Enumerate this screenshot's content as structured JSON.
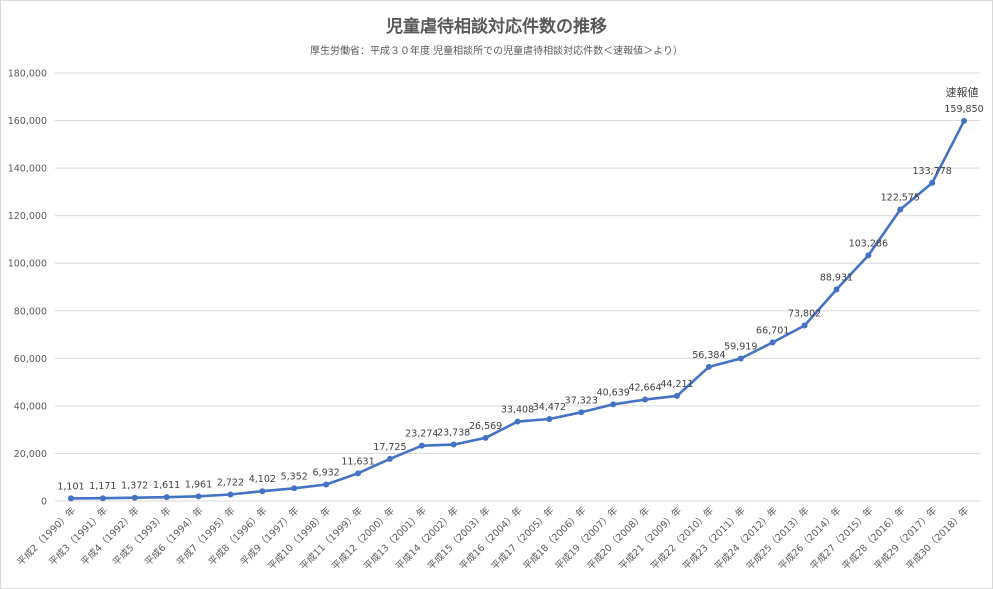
{
  "chart_data": {
    "type": "line",
    "title": "児童虐待相談対応件数の推移",
    "subtitle": "厚生労働省：平成３０年度 児童相談所での児童虐待相談対応件数＜速報値＞より）",
    "categories": [
      "平成2（1990）年",
      "平成3（1991）年",
      "平成4（1992）年",
      "平成5（1993）年",
      "平成6（1994）年",
      "平成7（1995）年",
      "平成8（1996）年",
      "平成9（1997）年",
      "平成10（1998）年",
      "平成11（1999）年",
      "平成12（2000）年",
      "平成13（2001）年",
      "平成14（2002）年",
      "平成15（2003）年",
      "平成16（2004）年",
      "平成17（2005）年",
      "平成18（2006）年",
      "平成19（2007）年",
      "平成20（2008）年",
      "平成21（2009）年",
      "平成22（2010）年",
      "平成23（2011）年",
      "平成24（2012）年",
      "平成25（2013）年",
      "平成26（2014）年",
      "平成27（2015）年",
      "平成28（2016）年",
      "平成29（2017）年",
      "平成30（2018）年"
    ],
    "values": [
      1101,
      1171,
      1372,
      1611,
      1961,
      2722,
      4102,
      5352,
      6932,
      11631,
      17725,
      23274,
      23738,
      26569,
      33408,
      34472,
      37323,
      40639,
      42664,
      44211,
      56384,
      59919,
      66701,
      73802,
      88931,
      103286,
      122575,
      133778,
      159850
    ],
    "data_labels": [
      "1,101",
      "1,171",
      "1,372",
      "1,611",
      "1,961",
      "2,722",
      "4,102",
      "5,352",
      "6,932",
      "11,631",
      "17,725",
      "23,274",
      "23,738",
      "26,569",
      "33,408",
      "34,472",
      "37,323",
      "40,639",
      "42,664",
      "44,211",
      "56,384",
      "59,919",
      "66,701",
      "73,802",
      "88,931",
      "103,286",
      "122,575",
      "133,778",
      "159,850"
    ],
    "y_ticks": [
      "0",
      "20,000",
      "40,000",
      "60,000",
      "80,000",
      "100,000",
      "120,000",
      "140,000",
      "160,000",
      "180,000"
    ],
    "ylim": [
      0,
      180000
    ],
    "y_step": 20000,
    "annotation": "速報値",
    "grid": true,
    "legend": "none",
    "xlabel": "",
    "ylabel": "",
    "colors": {
      "line": "#4472c4",
      "grid": "#d9d9d9",
      "text": "#595959"
    }
  }
}
